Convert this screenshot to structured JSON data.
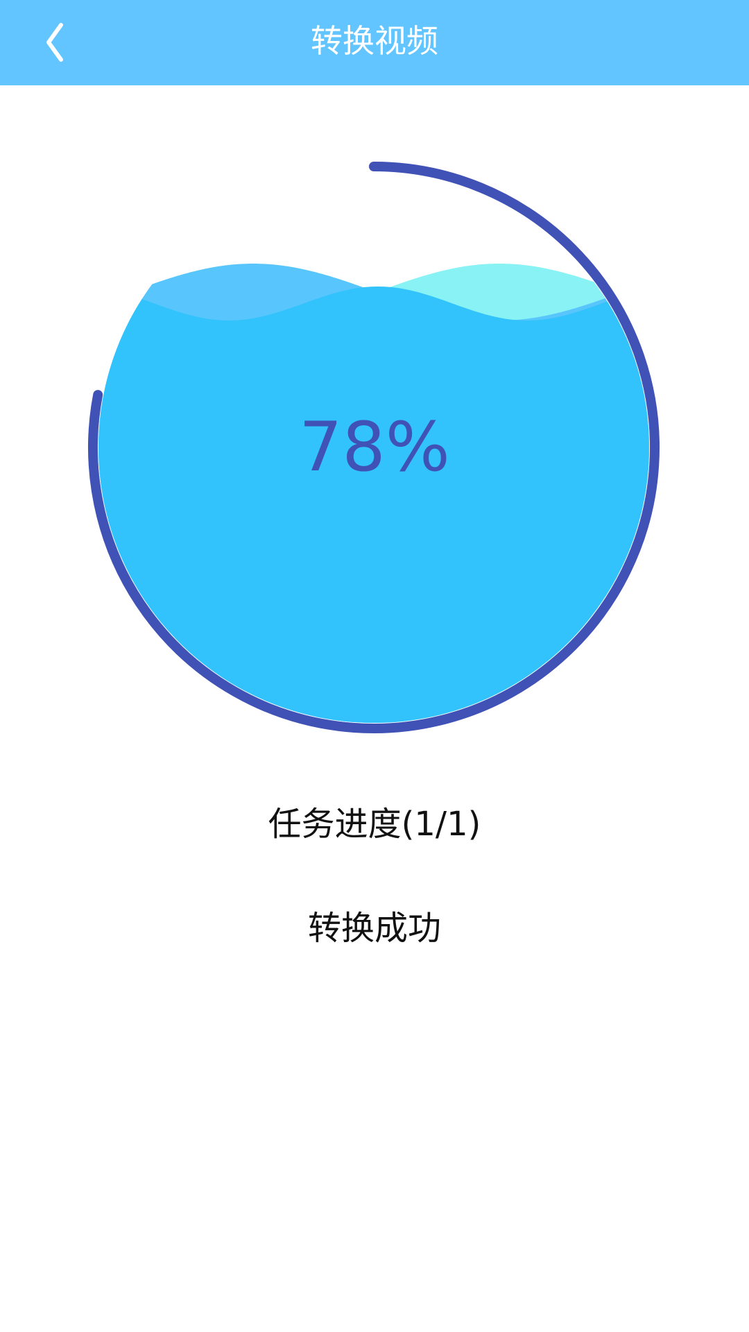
{
  "header": {
    "title": "转换视频",
    "back_icon": "chevron-left-icon"
  },
  "progress": {
    "value": 0.78,
    "label": "78%"
  },
  "task_progress": "任务进度(1/1)",
  "status": "转换成功",
  "colors": {
    "header": "#62c5ff",
    "ring": "#4152b6",
    "water": "#32c2fc",
    "wave_back_1": "#58c6fc",
    "wave_back_2": "#88f2f4"
  }
}
